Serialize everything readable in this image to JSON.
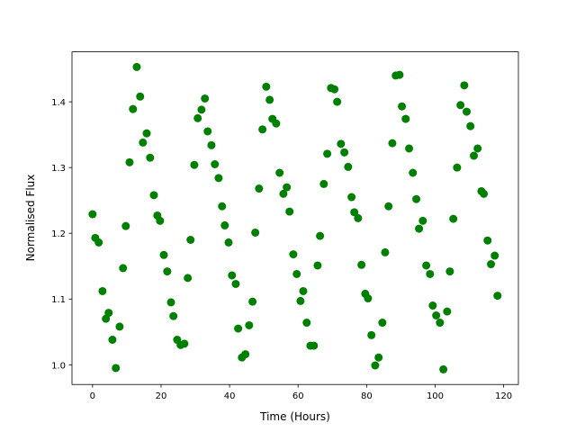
{
  "chart_data": {
    "type": "scatter",
    "xlabel": "Time (Hours)",
    "ylabel": "Normalised Flux",
    "color": "#008000",
    "x": [
      0.0,
      0.8,
      1.8,
      2.9,
      3.9,
      4.7,
      5.8,
      6.8,
      7.9,
      8.9,
      9.7,
      10.8,
      11.8,
      12.9,
      13.9,
      14.7,
      15.8,
      16.8,
      17.9,
      18.9,
      19.7,
      20.8,
      21.8,
      22.9,
      23.6,
      24.7,
      25.7,
      26.8,
      27.8,
      28.6,
      29.7,
      30.7,
      31.8,
      32.8,
      33.6,
      34.7,
      35.7,
      36.8,
      37.8,
      38.6,
      39.7,
      40.7,
      41.8,
      42.5,
      43.6,
      44.6,
      45.7,
      46.7,
      47.5,
      48.6,
      49.6,
      50.7,
      51.7,
      52.5,
      53.6,
      54.6,
      55.7,
      56.7,
      57.5,
      58.6,
      59.6,
      60.7,
      61.5,
      62.5,
      63.6,
      64.6,
      65.7,
      66.4,
      67.5,
      68.5,
      69.6,
      70.6,
      71.4,
      72.5,
      73.5,
      74.6,
      75.6,
      76.4,
      77.5,
      78.5,
      79.6,
      80.4,
      81.4,
      82.5,
      83.5,
      84.6,
      85.4,
      86.4,
      87.5,
      88.5,
      89.6,
      90.3,
      91.4,
      92.4,
      93.5,
      94.5,
      95.3,
      96.4,
      97.4,
      98.5,
      99.3,
      100.3,
      101.4,
      102.4,
      103.5,
      104.3,
      105.3,
      106.4,
      107.4,
      108.5,
      109.2,
      110.3,
      111.3,
      112.4,
      113.5,
      114.2,
      115.3,
      116.3,
      117.4,
      118.2
    ],
    "values": [
      1.229,
      1.193,
      1.186,
      1.112,
      1.07,
      1.079,
      1.038,
      0.995,
      1.058,
      1.147,
      1.211,
      1.308,
      1.389,
      1.453,
      1.408,
      1.338,
      1.352,
      1.315,
      1.258,
      1.227,
      1.219,
      1.167,
      1.142,
      1.095,
      1.074,
      1.038,
      1.03,
      1.032,
      1.132,
      1.19,
      1.304,
      1.375,
      1.388,
      1.405,
      1.355,
      1.334,
      1.305,
      1.284,
      1.241,
      1.212,
      1.186,
      1.136,
      1.123,
      1.055,
      1.011,
      1.016,
      1.06,
      1.096,
      1.201,
      1.268,
      1.358,
      1.423,
      1.403,
      1.374,
      1.367,
      1.292,
      1.26,
      1.27,
      1.233,
      1.168,
      1.138,
      1.097,
      1.112,
      1.064,
      1.029,
      1.029,
      1.151,
      1.196,
      1.275,
      1.321,
      1.421,
      1.419,
      1.4,
      1.336,
      1.323,
      1.301,
      1.255,
      1.232,
      1.223,
      1.152,
      1.108,
      1.101,
      1.045,
      0.999,
      1.011,
      1.064,
      1.171,
      1.241,
      1.337,
      1.44,
      1.441,
      1.393,
      1.374,
      1.329,
      1.292,
      1.252,
      1.207,
      1.219,
      1.151,
      1.138,
      1.09,
      1.075,
      1.064,
      0.993,
      1.081,
      1.142,
      1.222,
      1.3,
      1.395,
      1.425,
      1.385,
      1.363,
      1.318,
      1.329,
      1.264,
      1.26,
      1.189,
      1.153,
      1.166,
      1.105
    ],
    "xlim": [
      -6.0,
      124.3
    ],
    "ylim": [
      0.97,
      1.476
    ],
    "xticks": [
      0,
      20,
      40,
      60,
      80,
      100,
      120
    ],
    "yticks": [
      {
        "value": 1.0,
        "label": "1.0"
      },
      1.1,
      1.2,
      1.3,
      1.4
    ]
  }
}
